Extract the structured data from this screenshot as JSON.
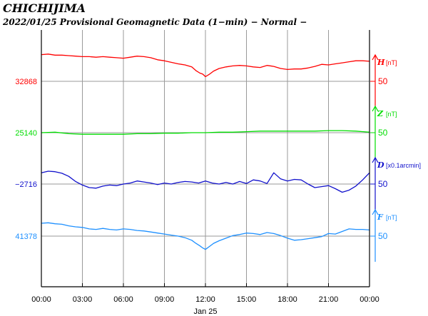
{
  "header": {
    "station": "CHICHIJIMA",
    "subtitle": "2022/01/25  Provisional Geomagnetic Data (1−min)  − Normal −"
  },
  "chart_data": {
    "type": "line",
    "title": "2022/01/25  Provisional Geomagnetic Data (1−min)  − Normal −",
    "xlabel": "Jan 25",
    "x_unit": "hours",
    "xlim": [
      0,
      24
    ],
    "grid": true,
    "x_tick_labels": [
      "00:00",
      "03:00",
      "06:00",
      "09:00",
      "12:00",
      "15:00",
      "18:00",
      "21:00",
      "00:00"
    ],
    "series": [
      {
        "name": "H",
        "unit": "[nT]",
        "color": "#ff0000",
        "baseline": "32868",
        "scale": "50",
        "x": [
          0,
          0.5,
          1,
          1.5,
          2,
          2.5,
          3,
          3.5,
          4,
          4.5,
          5,
          5.5,
          6,
          6.5,
          7,
          7.5,
          8,
          8.5,
          9,
          9.5,
          10,
          10.5,
          11,
          11.3,
          11.6,
          11.8,
          12,
          12.3,
          12.6,
          13,
          13.5,
          14,
          14.5,
          15,
          15.5,
          16,
          16.5,
          17,
          17.5,
          18,
          18.5,
          19,
          19.5,
          20,
          20.5,
          21,
          21.5,
          22,
          22.5,
          23,
          23.5,
          24
        ],
        "values": [
          52,
          53,
          51,
          51,
          50,
          49,
          48,
          48,
          47,
          48,
          47,
          46,
          45,
          47,
          49,
          48,
          46,
          42,
          40,
          37,
          34,
          32,
          28,
          21,
          16,
          14,
          9,
          14,
          20,
          25,
          28,
          30,
          31,
          30,
          28,
          27,
          31,
          29,
          25,
          23,
          24,
          24,
          26,
          29,
          33,
          32,
          34,
          36,
          38,
          40,
          40,
          39
        ]
      },
      {
        "name": "Z",
        "unit": "[nT]",
        "color": "#00dd00",
        "baseline": "25140",
        "scale": "50",
        "x": [
          0,
          1,
          2,
          3,
          4,
          5,
          6,
          7,
          8,
          9,
          10,
          11,
          12,
          13,
          14,
          15,
          16,
          17,
          18,
          19,
          20,
          21,
          22,
          23,
          24
        ],
        "values": [
          0,
          1,
          -2,
          -3,
          -3,
          -3,
          -3,
          -2,
          -2,
          -1,
          -1,
          0,
          0,
          1,
          1,
          2,
          3,
          3,
          3,
          3,
          3,
          4,
          4,
          3,
          1
        ]
      },
      {
        "name": "D",
        "unit": "[x0.1arcmin]",
        "color": "#1111cc",
        "baseline": "−2716",
        "scale": "50",
        "x": [
          0,
          0.5,
          1,
          1.5,
          2,
          2.5,
          3,
          3.5,
          4,
          4.5,
          5,
          5.5,
          6,
          6.5,
          7,
          7.5,
          8,
          8.5,
          9,
          9.5,
          10,
          10.5,
          11,
          11.5,
          12,
          12.5,
          13,
          13.5,
          14,
          14.5,
          15,
          15.5,
          16,
          16.5,
          17,
          17.5,
          18,
          18.5,
          19,
          19.5,
          20,
          20.5,
          21,
          21.5,
          22,
          22.5,
          23,
          23.5,
          24
        ],
        "values": [
          22,
          25,
          24,
          21,
          15,
          5,
          -2,
          -7,
          -8,
          -4,
          -2,
          -3,
          0,
          2,
          6,
          4,
          2,
          -1,
          2,
          0,
          3,
          5,
          4,
          2,
          6,
          2,
          0,
          3,
          0,
          5,
          1,
          8,
          6,
          1,
          22,
          10,
          6,
          9,
          8,
          0,
          -7,
          -5,
          -3,
          -9,
          -16,
          -12,
          -4,
          8,
          22
        ]
      },
      {
        "name": "F",
        "unit": "[nT]",
        "color": "#1e90ff",
        "baseline": "41378",
        "scale": "50",
        "x": [
          0,
          0.5,
          1,
          1.5,
          2,
          2.5,
          3,
          3.5,
          4,
          4.5,
          5,
          5.5,
          6,
          6.5,
          7,
          7.5,
          8,
          8.5,
          9,
          9.5,
          10,
          10.5,
          11,
          11.3,
          11.6,
          11.8,
          12,
          12.3,
          12.6,
          13,
          13.5,
          14,
          14.5,
          15,
          15.5,
          16,
          16.5,
          17,
          17.5,
          18,
          18.5,
          19,
          19.5,
          20,
          20.5,
          21,
          21.5,
          22,
          22.5,
          23,
          23.5,
          24
        ],
        "values": [
          25,
          26,
          24,
          23,
          20,
          18,
          17,
          14,
          13,
          15,
          13,
          12,
          14,
          13,
          11,
          10,
          8,
          6,
          4,
          2,
          0,
          -3,
          -8,
          -14,
          -19,
          -23,
          -26,
          -20,
          -14,
          -9,
          -4,
          1,
          3,
          6,
          5,
          3,
          7,
          5,
          1,
          -4,
          -8,
          -7,
          -5,
          -3,
          -1,
          5,
          4,
          9,
          14,
          13,
          13,
          12
        ]
      }
    ]
  }
}
